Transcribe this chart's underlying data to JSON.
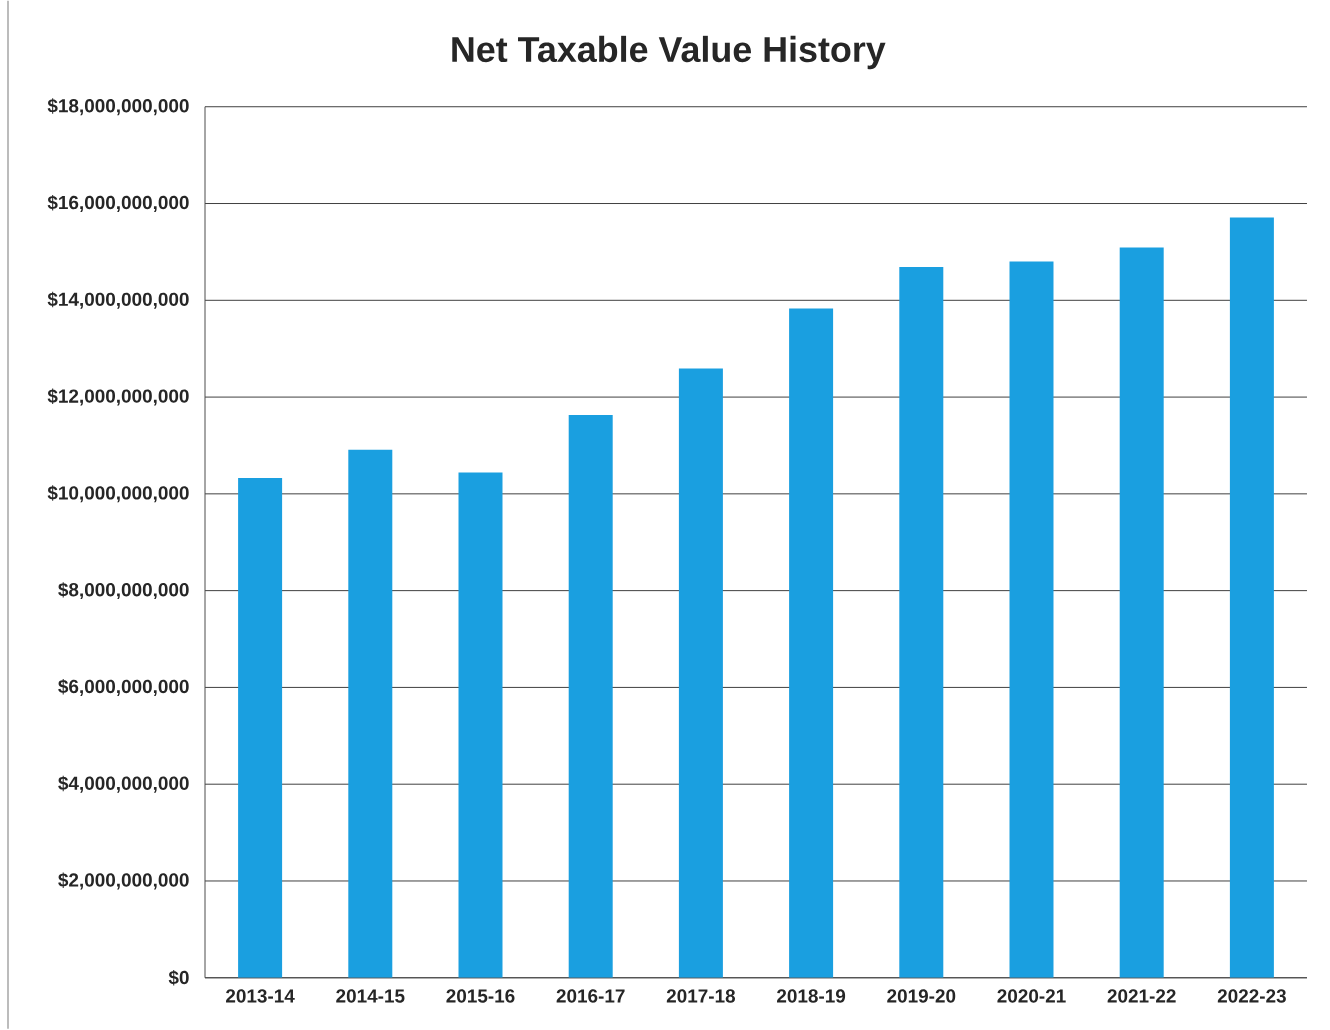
{
  "chart_data": {
    "type": "bar",
    "title": "Net Taxable Value History",
    "categories": [
      "2013-14",
      "2014-15",
      "2015-16",
      "2016-17",
      "2017-18",
      "2018-19",
      "2019-20",
      "2020-21",
      "2021-22",
      "2022-23"
    ],
    "values": [
      10330000000,
      10910000000,
      10440000000,
      11630000000,
      12590000000,
      13830000000,
      14690000000,
      14800000000,
      15090000000,
      15710000000
    ],
    "color": "#1a9fe0",
    "ylim": [
      0,
      18000000000
    ],
    "yticks": [
      {
        "value": 0,
        "label": "$0"
      },
      {
        "value": 2000000000,
        "label": "$2,000,000,000"
      },
      {
        "value": 4000000000,
        "label": "$4,000,000,000"
      },
      {
        "value": 6000000000,
        "label": "$6,000,000,000"
      },
      {
        "value": 8000000000,
        "label": "$8,000,000,000"
      },
      {
        "value": 10000000000,
        "label": "$10,000,000,000"
      },
      {
        "value": 12000000000,
        "label": "$12,000,000,000"
      },
      {
        "value": 14000000000,
        "label": "$14,000,000,000"
      },
      {
        "value": 16000000000,
        "label": "$16,000,000,000"
      },
      {
        "value": 18000000000,
        "label": "$18,000,000,000"
      }
    ],
    "grid": "y"
  }
}
